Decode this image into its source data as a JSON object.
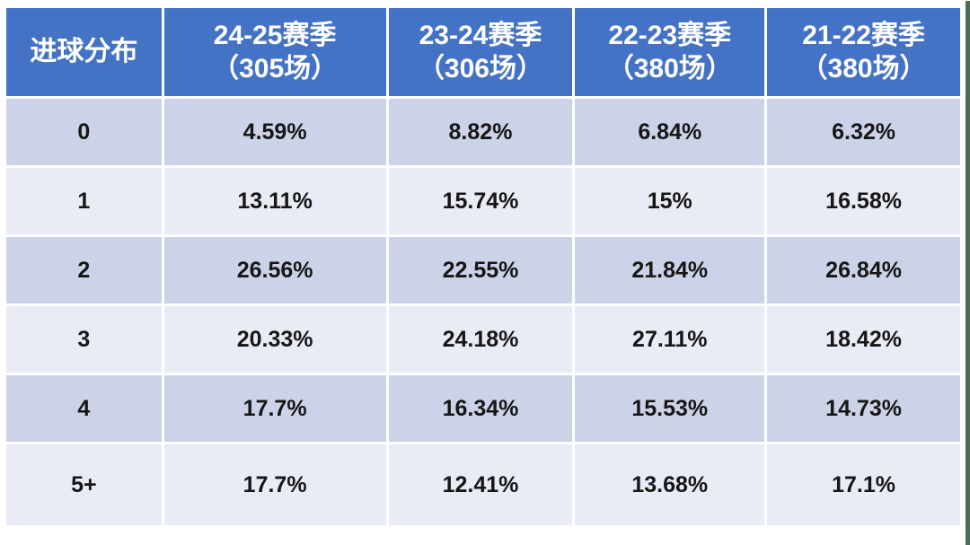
{
  "chart_data": {
    "type": "table",
    "corner_header": "进球分布",
    "column_headers": [
      {
        "line1": "24-25赛季",
        "line2": "（305场）"
      },
      {
        "line1": "23-24赛季",
        "line2": "（306场）"
      },
      {
        "line1": "22-23赛季",
        "line2": "（380场）"
      },
      {
        "line1": "21-22赛季",
        "line2": "（380场）"
      }
    ],
    "row_labels": [
      "0",
      "1",
      "2",
      "3",
      "4",
      "5+"
    ],
    "rows": [
      {
        "label": "0",
        "cells": [
          "4.59%",
          "8.82%",
          "6.84%",
          "6.32%"
        ]
      },
      {
        "label": "1",
        "cells": [
          "13.11%",
          "15.74%",
          "15%",
          "16.58%"
        ]
      },
      {
        "label": "2",
        "cells": [
          "26.56%",
          "22.55%",
          "21.84%",
          "26.84%"
        ]
      },
      {
        "label": "3",
        "cells": [
          "20.33%",
          "24.18%",
          "27.11%",
          "18.42%"
        ]
      },
      {
        "label": "4",
        "cells": [
          "17.7%",
          "16.34%",
          "15.53%",
          "14.73%"
        ]
      },
      {
        "label": "5+",
        "cells": [
          "17.7%",
          "12.41%",
          "13.68%",
          "17.1%"
        ]
      }
    ],
    "series": [
      {
        "name": "24-25赛季（305场）",
        "values": [
          4.59,
          13.11,
          26.56,
          20.33,
          17.7,
          17.7
        ]
      },
      {
        "name": "23-24赛季（306场）",
        "values": [
          8.82,
          15.74,
          22.55,
          24.18,
          16.34,
          12.41
        ]
      },
      {
        "name": "22-23赛季（380场）",
        "values": [
          6.84,
          15,
          21.84,
          27.11,
          15.53,
          13.68
        ]
      },
      {
        "name": "21-22赛季（380场）",
        "values": [
          6.32,
          16.58,
          26.84,
          18.42,
          14.73,
          17.1
        ]
      }
    ],
    "title": "",
    "legend_position": "none",
    "grid": "white gaps between cells"
  },
  "colors": {
    "header_bg": "#4472c4",
    "header_text": "#ffffff",
    "band_dark": "#ccd2e7",
    "band_light": "#e9ebf5",
    "grid": "#ffffff",
    "text": "#161616",
    "edge_strip": "#4e6b54"
  }
}
